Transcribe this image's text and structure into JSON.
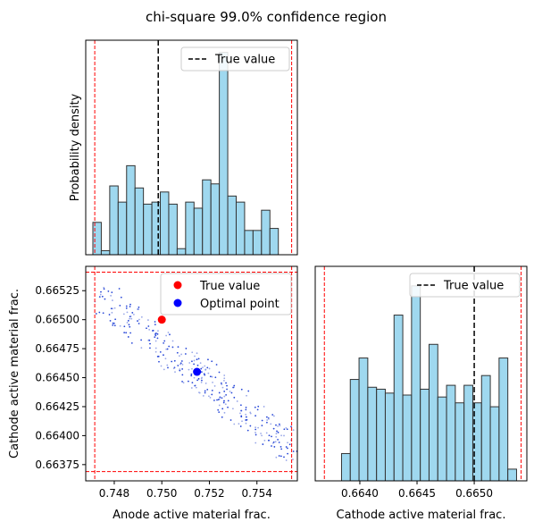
{
  "figure": {
    "title": "chi-square 99.0% confidence region"
  },
  "chart_data": [
    {
      "type": "histogram",
      "panel": "top-left",
      "xlabel": "",
      "ylabel": "Probability density",
      "xlim": [
        0.7468,
        0.7557
      ],
      "ylim": [
        0,
        1.06
      ],
      "bin_range": [
        0.7471,
        0.7549
      ],
      "bins_density": [
        0.16,
        0.02,
        0.34,
        0.26,
        0.44,
        0.33,
        0.25,
        0.26,
        0.31,
        0.25,
        0.03,
        0.26,
        0.23,
        0.37,
        0.35,
        1.0,
        0.29,
        0.26,
        0.12,
        0.12,
        0.22,
        0.13
      ],
      "true_value": 0.74985,
      "bounds": [
        0.74718,
        0.75546
      ],
      "legend": {
        "label": "True value",
        "position": "top-right"
      },
      "colors": {
        "bar": "#87ceeb",
        "edge": "#333333",
        "true_line": "#000000",
        "bound_line": "#ff0000"
      }
    },
    {
      "type": "scatter",
      "panel": "bottom-left",
      "xlabel": "Anode active material frac.",
      "ylabel": "Cathode active material frac.",
      "xlim": [
        0.7468,
        0.7557
      ],
      "ylim": [
        0.66361,
        0.66546
      ],
      "xticks": [
        "0.748",
        "0.750",
        "0.752",
        "0.754"
      ],
      "yticks": [
        "0.66375",
        "0.66400",
        "0.66425",
        "0.66450",
        "0.66475",
        "0.66500",
        "0.66525"
      ],
      "true_value": {
        "x": 0.75,
        "y": 0.665
      },
      "optimal_point": {
        "x": 0.75148,
        "y": 0.66455
      },
      "bounds_x": [
        0.74718,
        0.75546
      ],
      "bounds_y": [
        0.66369,
        0.66541
      ],
      "sample_band": {
        "x_start": 0.7474,
        "x_end": 0.7554,
        "y_at_start": 0.66521,
        "y_at_end": 0.66391,
        "count": 320
      },
      "legend": [
        {
          "label": "True value",
          "color": "#ff0000"
        },
        {
          "label": "Optimal point",
          "color": "#0000ff"
        }
      ],
      "legend_position": "top-right"
    },
    {
      "type": "histogram",
      "panel": "bottom-right",
      "xlabel": "Cathode active material frac.",
      "ylabel": "",
      "xlim": [
        0.66361,
        0.66546
      ],
      "ylim": [
        0,
        1.1
      ],
      "xticks": [
        "0.6640",
        "0.6645",
        "0.6650"
      ],
      "bin_range": [
        0.66384,
        0.66537
      ],
      "bins_density": [
        0.14,
        0.52,
        0.63,
        0.48,
        0.47,
        0.45,
        0.85,
        0.44,
        1.0,
        0.47,
        0.7,
        0.43,
        0.49,
        0.4,
        0.49,
        0.4,
        0.54,
        0.38,
        0.63,
        0.06
      ],
      "true_value": 0.665,
      "bounds": [
        0.66369,
        0.66541
      ],
      "legend": {
        "label": "True value",
        "position": "top-right"
      },
      "colors": {
        "bar": "#87ceeb",
        "edge": "#333333",
        "true_line": "#000000",
        "bound_line": "#ff0000"
      }
    }
  ]
}
